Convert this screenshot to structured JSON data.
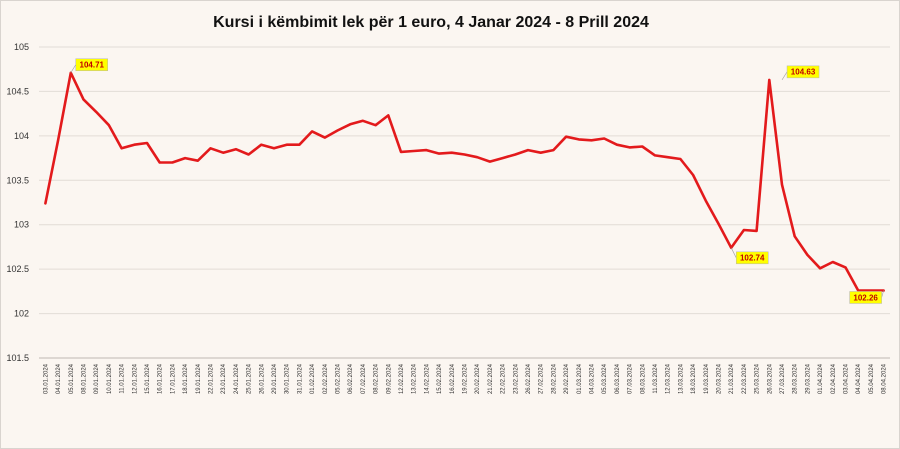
{
  "chart_data": {
    "type": "line",
    "title": "Kursi i këmbimit lek për 1 euro, 4 Janar 2024 - 8 Prill 2024",
    "xlabel": "",
    "ylabel": "",
    "ylim": [
      101.5,
      105
    ],
    "yticks": [
      "101.5",
      "102",
      "102.5",
      "103",
      "103.5",
      "104",
      "104.5",
      "105"
    ],
    "grid": true,
    "legend": "none",
    "line_color": "#e31a1c",
    "callout_fill": "#ffff00",
    "categories": [
      "03.01.2024",
      "04.01.2024",
      "05.01.2024",
      "08.01.2024",
      "09.01.2024",
      "10.01.2024",
      "11.01.2024",
      "12.01.2024",
      "15.01.2024",
      "16.01.2024",
      "17.01.2024",
      "18.01.2024",
      "19.01.2024",
      "22.01.2024",
      "23.01.2024",
      "24.01.2024",
      "25.01.2024",
      "26.01.2024",
      "29.01.2024",
      "30.01.2024",
      "31.01.2024",
      "01.02.2024",
      "02.02.2024",
      "05.02.2024",
      "06.02.2024",
      "07.02.2024",
      "08.02.2024",
      "09.02.2024",
      "12.02.2024",
      "13.02.2024",
      "14.02.2024",
      "15.02.2024",
      "16.02.2024",
      "19.02.2024",
      "20.02.2024",
      "21.02.2024",
      "22.02.2024",
      "23.02.2024",
      "26.02.2024",
      "27.02.2024",
      "28.02.2024",
      "29.02.2024",
      "01.03.2024",
      "04.03.2024",
      "05.03.2024",
      "06.03.2024",
      "07.03.2024",
      "08.03.2024",
      "11.03.2024",
      "12.03.2024",
      "13.03.2024",
      "18.03.2024",
      "19.03.2024",
      "20.03.2024",
      "21.03.2024",
      "22.03.2024",
      "25.03.2024",
      "26.03.2024",
      "27.03.2024",
      "28.03.2024",
      "29.03.2024",
      "01.04.2024",
      "02.04.2024",
      "03.04.2024",
      "04.04.2024",
      "05.04.2024",
      "08.04.2024"
    ],
    "values": [
      103.24,
      103.95,
      104.71,
      104.41,
      104.27,
      104.12,
      103.86,
      103.9,
      103.92,
      103.7,
      103.7,
      103.75,
      103.72,
      103.86,
      103.81,
      103.85,
      103.79,
      103.9,
      103.86,
      103.9,
      103.9,
      104.05,
      103.98,
      104.06,
      104.13,
      104.17,
      104.12,
      104.23,
      103.82,
      103.83,
      103.84,
      103.8,
      103.81,
      103.79,
      103.76,
      103.71,
      103.75,
      103.79,
      103.84,
      103.81,
      103.84,
      103.99,
      103.96,
      103.95,
      103.97,
      103.9,
      103.87,
      103.88,
      103.78,
      103.76,
      103.74,
      103.56,
      103.27,
      103.01,
      102.74,
      102.94,
      102.93,
      104.63,
      103.45,
      102.87,
      102.66,
      102.51,
      102.58,
      102.52,
      102.26,
      102.26,
      102.26
    ],
    "annotations": [
      {
        "category": "05.01.2024",
        "value": 104.71,
        "label": "104.71",
        "side": "right"
      },
      {
        "category": "21.03.2024",
        "value": 102.74,
        "label": "102.74",
        "side": "right"
      },
      {
        "category": "27.03.2024",
        "value": 104.63,
        "label": "104.63",
        "side": "right"
      },
      {
        "category": "08.04.2024",
        "value": 102.26,
        "label": "102.26",
        "side": "left"
      }
    ]
  }
}
